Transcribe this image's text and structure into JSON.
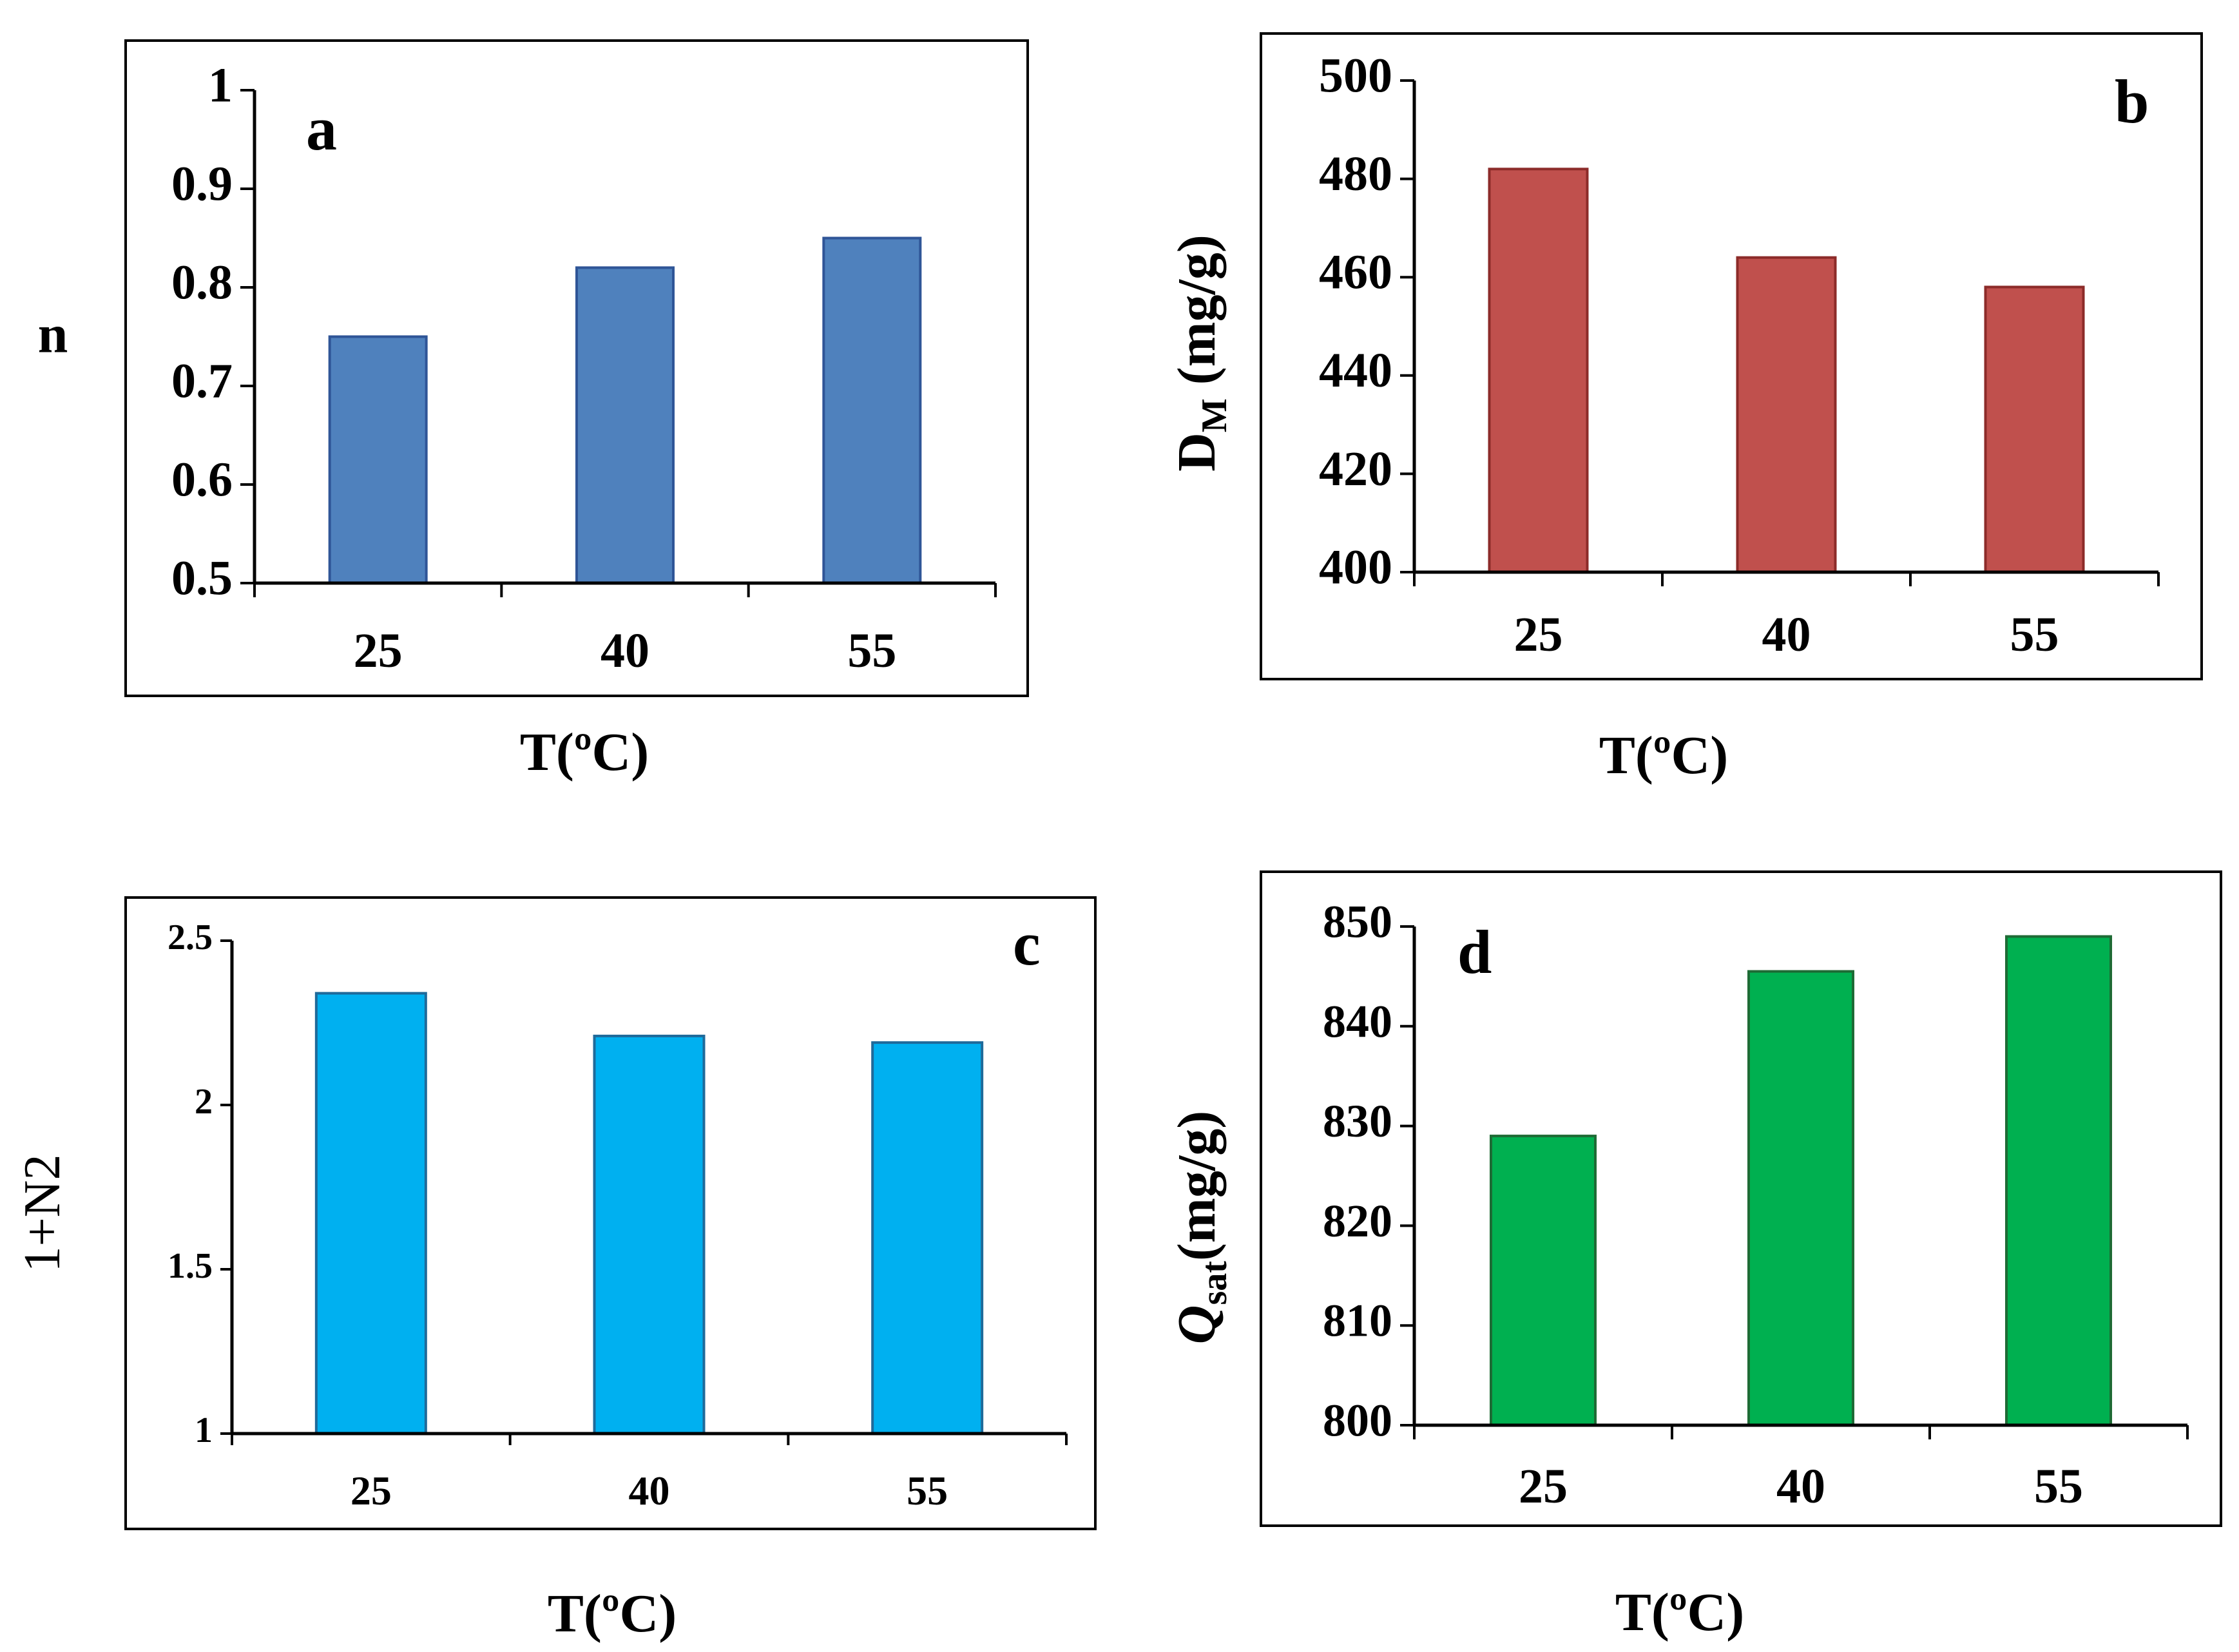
{
  "chart_data": [
    {
      "id": "a",
      "type": "bar",
      "panel_label": "a",
      "categories": [
        "25",
        "40",
        "55"
      ],
      "values": [
        0.75,
        0.82,
        0.85
      ],
      "ylim": [
        0.5,
        1
      ],
      "yticks": [
        "0.5",
        "0.6",
        "0.7",
        "0.8",
        "0.9",
        "1"
      ],
      "ylabel": "n",
      "xlabel": "T(ºC)",
      "color": "#4F81BD",
      "edge": "#2F5597"
    },
    {
      "id": "b",
      "type": "bar",
      "panel_label": "b",
      "categories": [
        "25",
        "40",
        "55"
      ],
      "values": [
        482,
        464,
        458
      ],
      "ylim": [
        400,
        500
      ],
      "yticks": [
        "400",
        "420",
        "440",
        "460",
        "480",
        "500"
      ],
      "ylabel": "D",
      "ylabel_sub": "M",
      "ylabel_tail": " (mg/g)",
      "xlabel": "T(ºC)",
      "color": "#C0504D",
      "edge": "#8C2B29"
    },
    {
      "id": "c",
      "type": "bar",
      "panel_label": "c",
      "categories": [
        "25",
        "40",
        "55"
      ],
      "values": [
        2.34,
        2.21,
        2.19
      ],
      "ylim": [
        1,
        2.5
      ],
      "yticks": [
        "1",
        "1.5",
        "2",
        "2.5"
      ],
      "ylabel": "1+N2",
      "xlabel": "T(ºC)",
      "color": "#00B0F0",
      "edge": "#1F6A9A"
    },
    {
      "id": "d",
      "type": "bar",
      "panel_label": "d",
      "categories": [
        "25",
        "40",
        "55"
      ],
      "values": [
        829,
        845.5,
        849
      ],
      "ylim": [
        800,
        850
      ],
      "yticks": [
        "800",
        "810",
        "820",
        "830",
        "840",
        "850"
      ],
      "ylabel": "Q",
      "ylabel_sub": "sat",
      "ylabel_tail": "(mg/g)",
      "xlabel": "T(ºC)",
      "color": "#00B050",
      "edge": "#1E6B35"
    }
  ]
}
